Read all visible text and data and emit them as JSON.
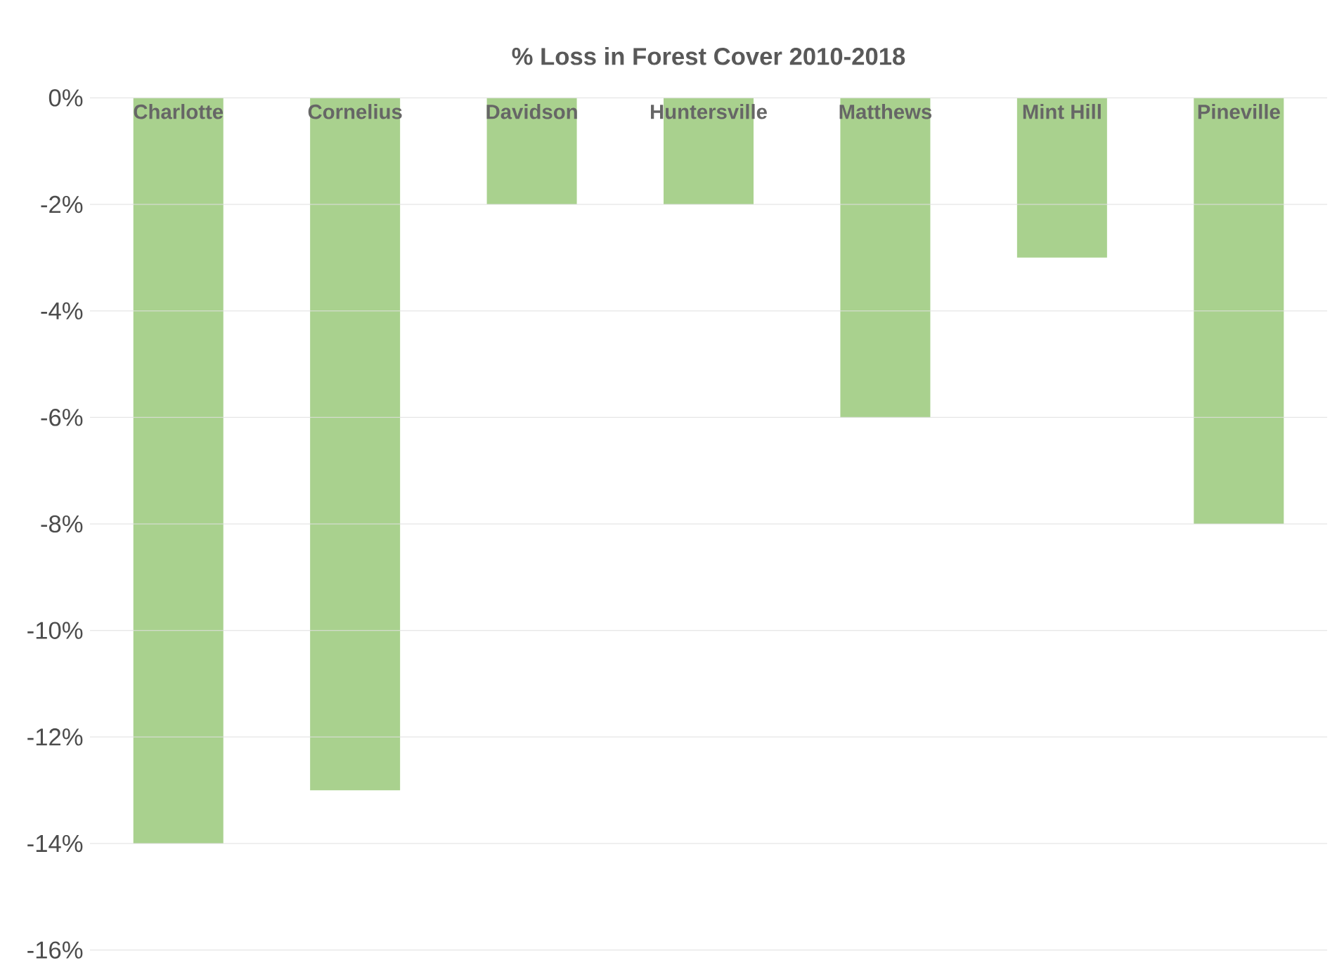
{
  "chart_data": {
    "type": "bar",
    "title": "% Loss in Forest Cover 2010-2018",
    "categories": [
      "Charlotte",
      "Cornelius",
      "Davidson",
      "Huntersville",
      "Matthews",
      "Mint Hill",
      "Pineville"
    ],
    "values": [
      -14,
      -13,
      -2,
      -2,
      -6,
      -3,
      -8
    ],
    "color": "#a9d18e",
    "ylim": [
      -16,
      0
    ],
    "yticks": [
      {
        "value": 0,
        "label": "0%"
      },
      {
        "value": -2,
        "label": "-2%"
      },
      {
        "value": -4,
        "label": "-4%"
      },
      {
        "value": -6,
        "label": "-6%"
      },
      {
        "value": -8,
        "label": "-8%"
      },
      {
        "value": -10,
        "label": "-10%"
      },
      {
        "value": -12,
        "label": "-12%"
      },
      {
        "value": -14,
        "label": "-14%"
      },
      {
        "value": -16,
        "label": "-16%"
      }
    ],
    "grid": "y"
  }
}
